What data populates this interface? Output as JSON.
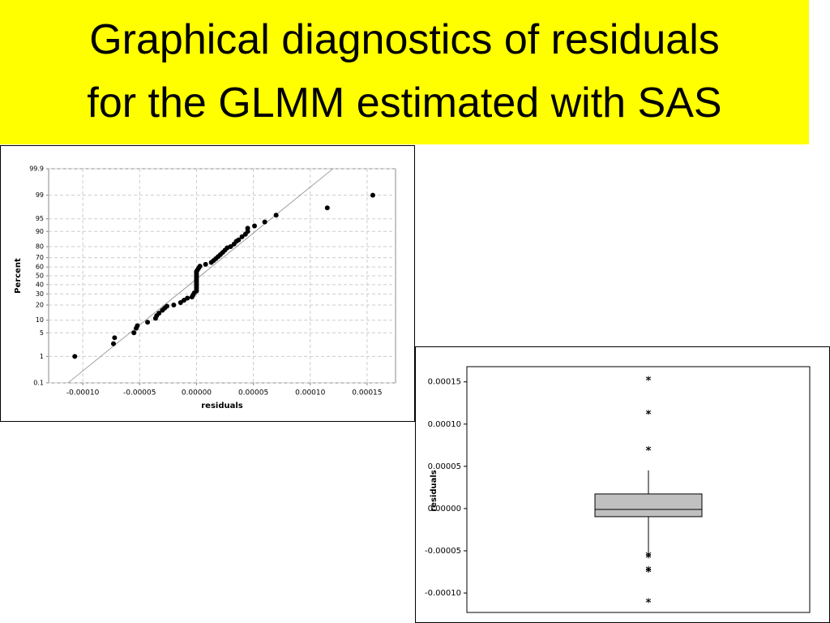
{
  "slide_title": [
    "Graphical diagnostics of residuals",
    "for the GLMM estimated with SAS"
  ],
  "chart_data": [
    {
      "type": "scatter",
      "yscale": "probability",
      "grid": true,
      "color": "#000000",
      "xlabel": "residuals",
      "ylabel": "Percent",
      "xlim": [
        -0.00013,
        0.000175
      ],
      "xticks": [
        {
          "value": -0.0001,
          "label": "-0.00010"
        },
        -5e-05,
        {
          "value": 0,
          "label": "0.00000"
        },
        5e-05,
        {
          "value": 0.0001,
          "label": "0.00010"
        },
        0.00015
      ],
      "ylim": [
        0.1,
        99.9
      ],
      "yticks": [
        0.1,
        1,
        5,
        10,
        20,
        30,
        40,
        50,
        60,
        70,
        80,
        90,
        95,
        99,
        99.9
      ],
      "x": [
        -0.000107,
        -7.3e-05,
        -7.2e-05,
        -5.5e-05,
        -5.3e-05,
        -5.2e-05,
        -4.3e-05,
        -3.6e-05,
        -3.5e-05,
        -3.3e-05,
        -3e-05,
        -2.8e-05,
        -2.6e-05,
        -2e-05,
        -1.4e-05,
        -1.1e-05,
        -8e-06,
        -4e-06,
        -3e-06,
        -2e-06,
        0,
        0,
        0,
        0,
        0,
        0,
        0,
        0,
        0,
        0,
        0,
        0,
        1e-06,
        2e-06,
        3e-06,
        8e-06,
        1.3e-05,
        1.5e-05,
        1.7e-05,
        1.9e-05,
        2.1e-05,
        2.3e-05,
        2.5e-05,
        2.7e-05,
        3e-05,
        3.3e-05,
        3.5e-05,
        3.7e-05,
        4e-05,
        4.3e-05,
        4.5e-05,
        4.5e-05,
        5.1e-05,
        6e-05,
        7e-05,
        0.000115,
        0.000155
      ],
      "values": [
        1,
        2.5,
        3.7,
        5,
        6.5,
        7.5,
        9,
        11,
        12.5,
        14,
        16,
        17.5,
        19,
        20,
        22,
        24,
        26,
        27,
        29,
        31,
        33,
        35,
        37,
        39,
        41,
        43,
        45,
        47,
        49,
        51,
        53,
        55,
        57,
        59,
        61,
        63,
        65,
        67,
        69,
        71,
        73,
        75,
        77,
        79,
        80,
        82,
        84,
        85,
        87,
        88.5,
        90,
        91.5,
        92.5,
        94,
        96,
        97.5,
        99
      ],
      "fit_line": {
        "x": [
          -0.000113,
          0.00012
        ],
        "values": [
          0.1,
          99.9
        ]
      }
    },
    {
      "type": "box",
      "ylabel": "residuals",
      "color": "#c0c0c0",
      "ylim": [
        -0.000123,
        0.000168
      ],
      "yticks": [
        {
          "value": -0.0001,
          "label": "-0.00010"
        },
        -5e-05,
        {
          "value": 0,
          "label": "0.00000"
        },
        5e-05,
        {
          "value": 0.0001,
          "label": "0.00010"
        },
        0.00015
      ],
      "whisker_low": -5.1e-05,
      "q1": -9.6e-06,
      "median": -1e-06,
      "q3": 1.73e-05,
      "whisker_high": 4.52e-05,
      "outliers": [
        0.000154,
        0.000114,
        7.1e-05,
        -5.4e-05,
        -5.6e-05,
        -7.1e-05,
        -7.3e-05,
        -0.000109
      ]
    }
  ]
}
